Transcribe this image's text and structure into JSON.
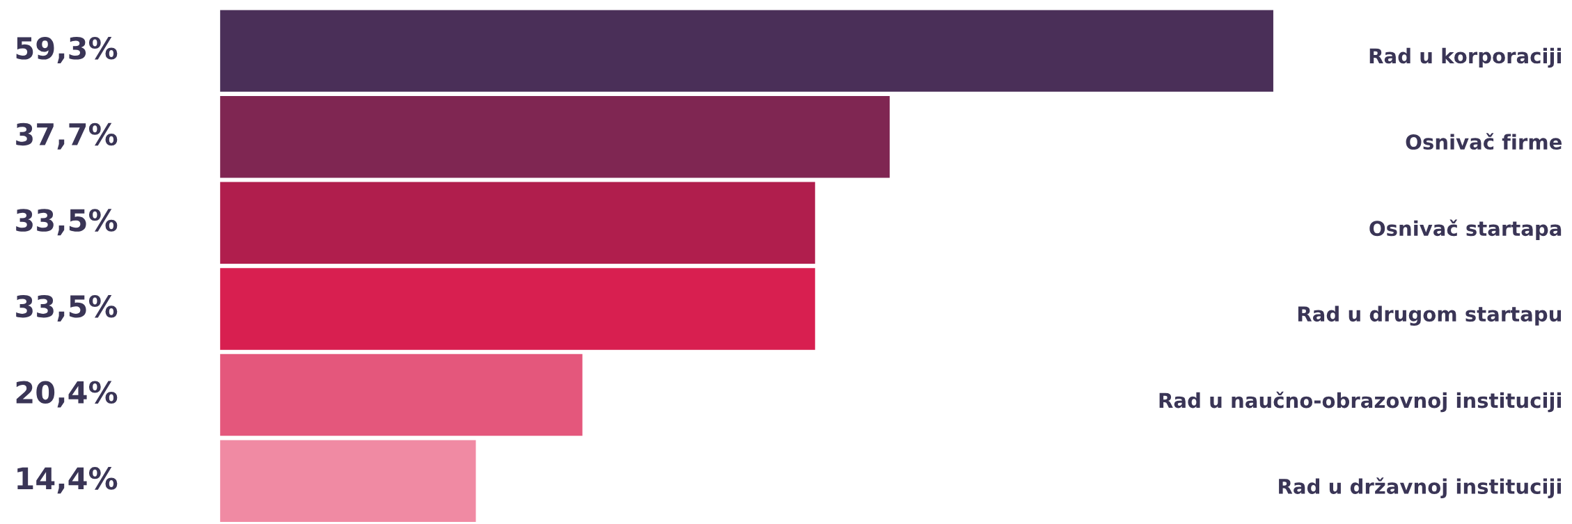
{
  "chart_data": {
    "type": "bar",
    "orientation": "horizontal",
    "categories": [
      "Rad u korporaciji",
      "Osnivač firme",
      "Osnivač startapa",
      "Rad u drugom startapu",
      "Rad u naučno-obrazovnoj instituciji",
      "Rad u državnoj instituciji"
    ],
    "values": [
      59.3,
      37.7,
      33.5,
      33.5,
      20.4,
      14.4
    ],
    "value_labels": [
      "59,3%",
      "37,7%",
      "33,5%",
      "33,5%",
      "20,4%",
      "14,4%"
    ],
    "colors": [
      "#4a2f58",
      "#7f2652",
      "#b01e4d",
      "#d81f50",
      "#e4577c",
      "#f08aa3"
    ]
  }
}
